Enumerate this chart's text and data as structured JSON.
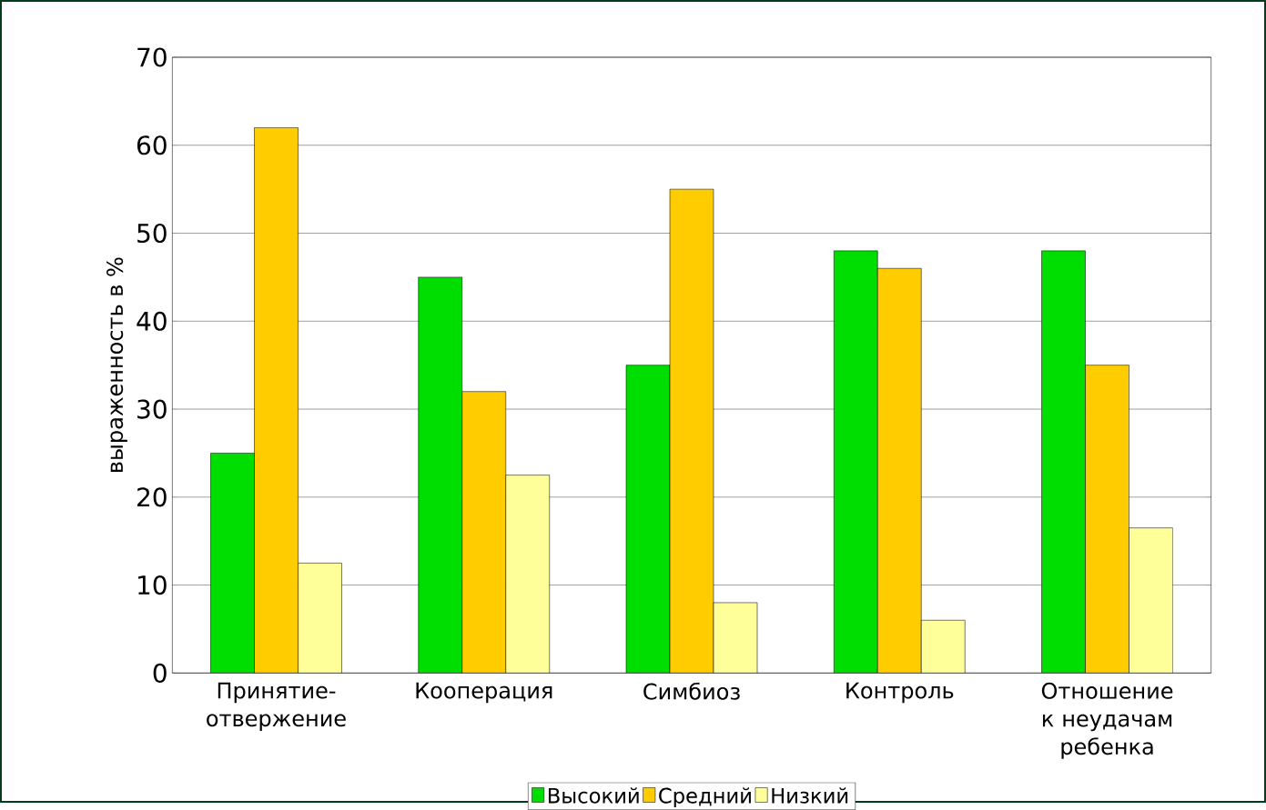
{
  "chart_data": {
    "type": "bar",
    "ylabel": "выраженность в %",
    "categories": [
      "Принятие-отвержение",
      "Кооперация",
      "Симбиоз",
      "Контроль",
      "Отношение к неудачам ребенка"
    ],
    "series": [
      {
        "name": "Высокий",
        "color": "#00dd00",
        "values": [
          25,
          45,
          35,
          48,
          48
        ]
      },
      {
        "name": "Средний",
        "color": "#ffcc00",
        "values": [
          62,
          32,
          55,
          46,
          35
        ]
      },
      {
        "name": "Низкий",
        "color": "#ffff99",
        "values": [
          12.5,
          22.5,
          8,
          6,
          16.5
        ]
      }
    ],
    "ylim": [
      0,
      70
    ],
    "yticks": [
      0,
      10,
      20,
      30,
      40,
      50,
      60,
      70
    ],
    "grid": "y",
    "legend": "bottom"
  }
}
